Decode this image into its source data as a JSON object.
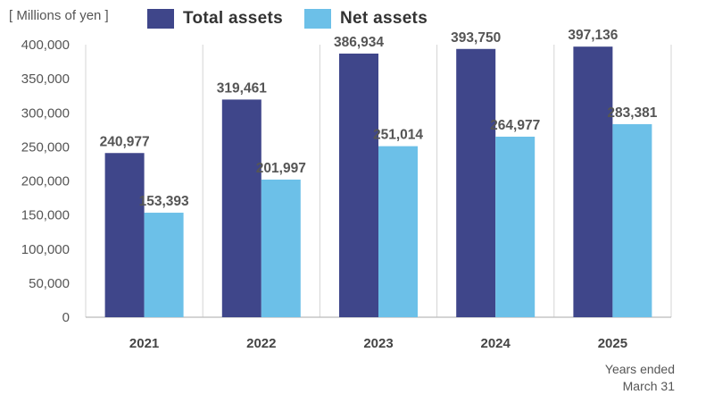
{
  "chart_data": {
    "type": "bar",
    "unit_label": "[ Millions of yen ]",
    "categories": [
      "2021",
      "2022",
      "2023",
      "2024",
      "2025"
    ],
    "series": [
      {
        "name": "Total assets",
        "color": "#3F468A",
        "values": [
          240977,
          319461,
          386934,
          393750,
          397136
        ],
        "labels": [
          "240,977",
          "319,461",
          "386,934",
          "393,750",
          "397,136"
        ]
      },
      {
        "name": "Net assets",
        "color": "#6CC0E8",
        "values": [
          153393,
          201997,
          251014,
          264977,
          283381
        ],
        "labels": [
          "153,393",
          "201,997",
          "251,014",
          "264,977",
          "283,381"
        ]
      }
    ],
    "ylim": [
      0,
      400000
    ],
    "yticks": [
      0,
      50000,
      100000,
      150000,
      200000,
      250000,
      300000,
      350000,
      400000
    ],
    "ytick_labels": [
      "0",
      "50,000",
      "100,000",
      "150,000",
      "200,000",
      "250,000",
      "300,000",
      "350,000",
      "400,000"
    ],
    "x_note": [
      "Years ended",
      "March 31"
    ],
    "legend_position": "top",
    "grid": "vertical"
  }
}
